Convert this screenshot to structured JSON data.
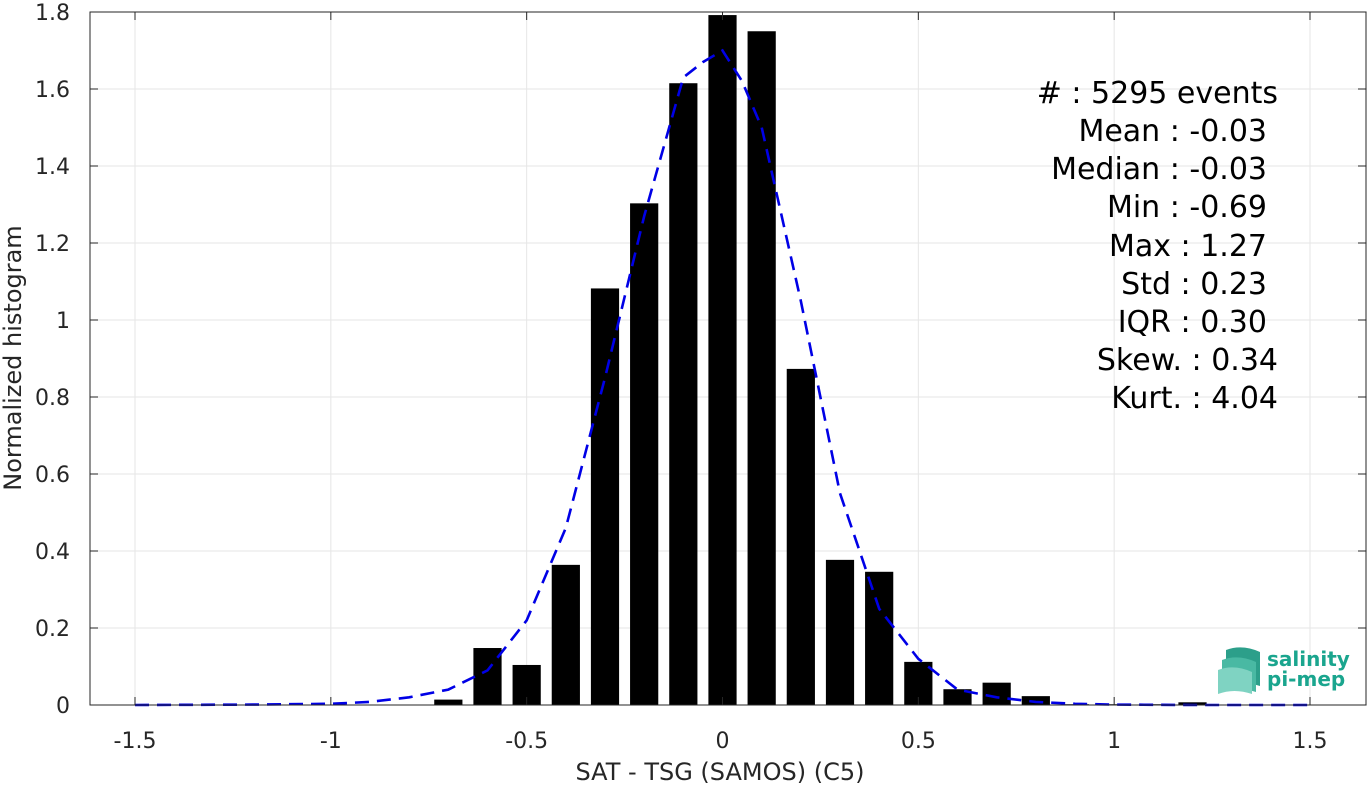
{
  "chart_data": {
    "type": "bar",
    "xlabel": "SAT - TSG (SAMOS) (C5)",
    "ylabel": "Normalized histogram",
    "xlim": [
      -1.5,
      1.5
    ],
    "ylim": [
      0,
      1.8
    ],
    "xticks": [
      -1.5,
      -1,
      -0.5,
      0,
      0.5,
      1,
      1.5
    ],
    "xtick_labels": [
      "-1.5",
      "-1",
      "-0.5",
      "0",
      "0.5",
      "1",
      "1.5"
    ],
    "yticks": [
      0,
      0.2,
      0.4,
      0.6,
      0.8,
      1,
      1.2,
      1.4,
      1.6,
      1.8
    ],
    "ytick_labels": [
      "0",
      "0.2",
      "0.4",
      "0.6",
      "0.8",
      "1",
      "1.2",
      "1.4",
      "1.6",
      "1.8"
    ],
    "grid": true,
    "bar_color": "#000000",
    "curve_color": "#0000e6",
    "series": [
      {
        "type": "bar",
        "x": [
          -0.7,
          -0.6,
          -0.5,
          -0.4,
          -0.3,
          -0.2,
          -0.1,
          0.0,
          0.1,
          0.2,
          0.3,
          0.4,
          0.5,
          0.6,
          0.7,
          0.8,
          0.9,
          1.0,
          1.1,
          1.2
        ],
        "values": [
          0.014,
          0.148,
          0.104,
          0.364,
          1.082,
          1.303,
          1.615,
          1.792,
          1.75,
          0.873,
          0.377,
          0.346,
          0.112,
          0.041,
          0.058,
          0.023,
          0.002,
          0.002,
          0.002,
          0.007
        ]
      },
      {
        "type": "line",
        "style": "dashed",
        "x": [
          -1.5,
          -1.2,
          -1.0,
          -0.9,
          -0.8,
          -0.7,
          -0.6,
          -0.5,
          -0.4,
          -0.3,
          -0.2,
          -0.1,
          -0.05,
          0.0,
          0.05,
          0.1,
          0.2,
          0.3,
          0.4,
          0.5,
          0.6,
          0.7,
          0.8,
          0.9,
          1.0,
          1.2,
          1.5
        ],
        "values": [
          0.0,
          0.001,
          0.003,
          0.008,
          0.02,
          0.04,
          0.09,
          0.22,
          0.46,
          0.85,
          1.27,
          1.63,
          1.67,
          1.7,
          1.62,
          1.5,
          1.05,
          0.55,
          0.25,
          0.12,
          0.04,
          0.02,
          0.008,
          0.003,
          0.001,
          0.0,
          0.0
        ]
      }
    ],
    "annotations": [
      "#  : 5295 events",
      "Mean : -0.03",
      "Median : -0.03",
      "Min : -0.69",
      "Max : 1.27",
      "Std : 0.23",
      "IQR : 0.30",
      "Skew. : 0.34",
      "Kurt. : 4.04"
    ],
    "annotation_placement": "top-right"
  },
  "logo": {
    "line1": "salinity",
    "line2": "pi-mep",
    "color": "#1aa58e"
  }
}
